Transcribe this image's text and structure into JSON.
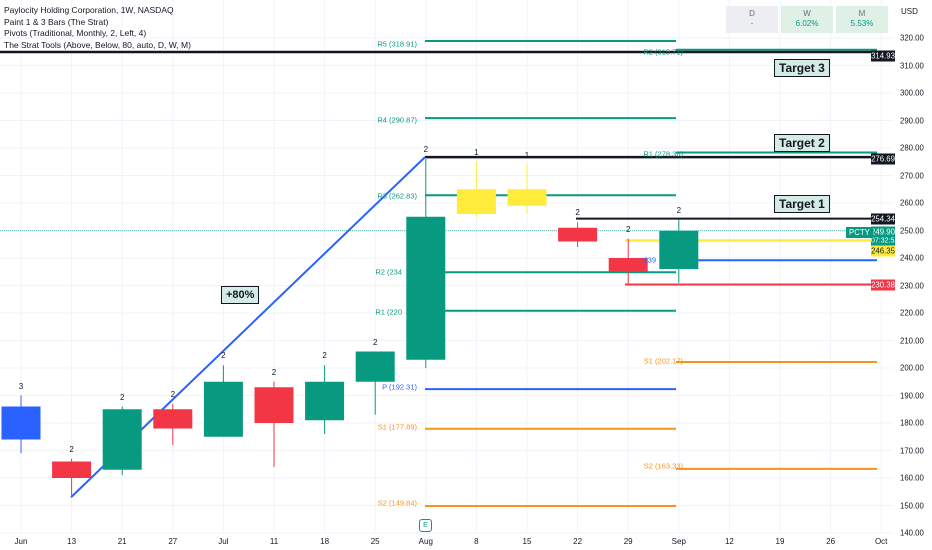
{
  "legend": {
    "title": "Paylocity Holding Corporation, 1W, NASDAQ",
    "ind1": "Paint 1 & 3 Bars (The Strat)",
    "ind2": "Pivots (Traditional, Monthly, 2, Left, 4)",
    "ind3": "The Strat Tools (Above, Below, 80, auto, D, W, M)"
  },
  "performance": [
    {
      "label": "D",
      "value": "-"
    },
    {
      "label": "W",
      "value": "6.02%"
    },
    {
      "label": "M",
      "value": "5.53%"
    }
  ],
  "currency": "USD",
  "y_ticks": [
    "320.00",
    "310.00",
    "300.00",
    "290.00",
    "280.00",
    "270.00",
    "260.00",
    "250.00",
    "240.00",
    "230.00",
    "220.00",
    "210.00",
    "200.00",
    "190.00",
    "180.00",
    "170.00",
    "160.00",
    "150.00",
    "140.00"
  ],
  "x_ticks": [
    "Jun",
    "13",
    "21",
    "27",
    "Jul",
    "11",
    "18",
    "25",
    "Aug",
    "8",
    "15",
    "22",
    "29",
    "Sep",
    "12",
    "19",
    "26",
    "Oct"
  ],
  "price_tags": {
    "t3": "314.93",
    "t2": "276.69",
    "t1": "254.34",
    "last": "249.90",
    "countdown": "07:32:53",
    "yellow": "246.35",
    "red": "230.38"
  },
  "symbol": "PCTY",
  "targets": [
    "Target 3",
    "Target 2",
    "Target 1"
  ],
  "annotation": "+80%",
  "earnings_marker": "E",
  "pivots": {
    "r5": "R5 (318.91)",
    "r4": "R4 (290.87)",
    "r3": "R3 (262.83)",
    "r2": "R2 (234",
    "r1": "R1 (220",
    "p": "P (192.31)",
    "s1": "S1 (177.89)",
    "s2": "S2 (149.84)",
    "m_r2": "R2 (315.71)",
    "m_r1": "R1 (278.36)",
    "m_s1": "S1 (202.17)",
    "m_s2": "S2 (163.33)",
    "m_p": "239"
  },
  "colors": {
    "up": "#089981",
    "down": "#f23645",
    "inside": "#ffeb3b",
    "outside": "#2962ff",
    "pivot_r": "#089981",
    "pivot_p": "#2962ff",
    "pivot_s": "#f7931a"
  },
  "chart_data": {
    "type": "candlestick",
    "candles": [
      {
        "date": "Jun 6",
        "open": 174,
        "high": 190,
        "low": 169,
        "close": 186,
        "color": "outside",
        "strat": "3"
      },
      {
        "date": "Jun 13",
        "open": 166,
        "high": 167,
        "low": 153,
        "close": 160,
        "color": "down",
        "strat": "2"
      },
      {
        "date": "Jun 20",
        "open": 163,
        "high": 186,
        "low": 161,
        "close": 185,
        "color": "up",
        "strat": "2"
      },
      {
        "date": "Jun 27",
        "open": 185,
        "high": 187,
        "low": 172,
        "close": 178,
        "color": "down",
        "strat": "2"
      },
      {
        "date": "Jul 4",
        "open": 175,
        "high": 201,
        "low": 175,
        "close": 195,
        "color": "up",
        "strat": "2"
      },
      {
        "date": "Jul 11",
        "open": 193,
        "high": 195,
        "low": 164,
        "close": 180,
        "color": "down",
        "strat": "2"
      },
      {
        "date": "Jul 18",
        "open": 181,
        "high": 201,
        "low": 176,
        "close": 195,
        "color": "up",
        "strat": "2"
      },
      {
        "date": "Jul 25",
        "open": 195,
        "high": 206,
        "low": 183,
        "close": 206,
        "color": "up",
        "strat": "2"
      },
      {
        "date": "Aug 1",
        "open": 203,
        "high": 276,
        "low": 200,
        "close": 255,
        "color": "up",
        "strat": "2"
      },
      {
        "date": "Aug 8",
        "open": 256,
        "high": 275,
        "low": 255,
        "close": 265,
        "color": "inside",
        "strat": "1"
      },
      {
        "date": "Aug 15",
        "open": 265,
        "high": 274,
        "low": 256,
        "close": 259,
        "color": "inside",
        "strat": "1"
      },
      {
        "date": "Aug 22",
        "open": 251,
        "high": 253,
        "low": 244,
        "close": 246,
        "color": "down",
        "strat": "2"
      },
      {
        "date": "Aug 29",
        "open": 240,
        "high": 247,
        "low": 230,
        "close": 235,
        "color": "down",
        "strat": "2"
      },
      {
        "date": "Sep 5",
        "open": 236,
        "high": 254,
        "low": 231,
        "close": 249.9,
        "color": "up",
        "strat": "2"
      }
    ],
    "ylim": [
      140,
      324
    ]
  }
}
